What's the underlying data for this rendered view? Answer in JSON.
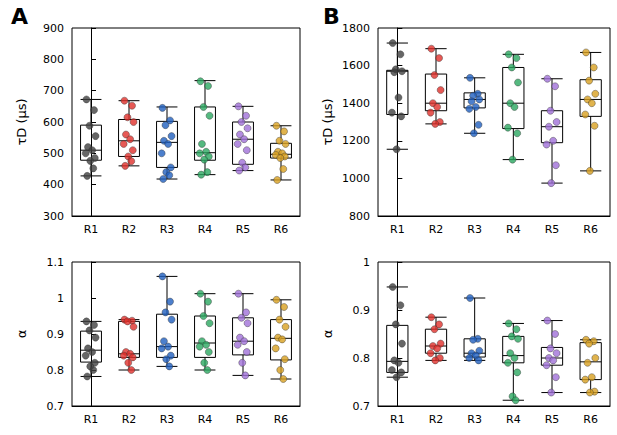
{
  "chart_data": [
    {
      "type": "boxplot",
      "title": "A",
      "ylabel": "τD (µs)",
      "categories": [
        "R1",
        "R2",
        "R3",
        "R4",
        "R5",
        "R6"
      ],
      "colors": [
        "#404040",
        "#e0302a",
        "#1f5fbf",
        "#2aa860",
        "#a070d8",
        "#d8a020"
      ],
      "ylim": [
        300,
        900
      ],
      "yticks": [
        300,
        400,
        500,
        600,
        700,
        800,
        900
      ],
      "boxes": [
        [
          428,
          478,
          510,
          590,
          672
        ],
        [
          460,
          490,
          540,
          608,
          668
        ],
        [
          418,
          455,
          535,
          602,
          648
        ],
        [
          432,
          478,
          502,
          648,
          732
        ],
        [
          445,
          465,
          545,
          600,
          650
        ],
        [
          415,
          485,
          497,
          532,
          588
        ]
      ],
      "points": [
        [
          672,
          638,
          588,
          555,
          520,
          510,
          500,
          485,
          476,
          452,
          428
        ],
        [
          668,
          652,
          615,
          600,
          560,
          545,
          530,
          510,
          490,
          475,
          460
        ],
        [
          645,
          605,
          590,
          555,
          540,
          530,
          500,
          455,
          440,
          430,
          418
        ],
        [
          730,
          715,
          648,
          620,
          530,
          505,
          500,
          490,
          480,
          440,
          432
        ],
        [
          650,
          620,
          600,
          580,
          560,
          545,
          530,
          510,
          470,
          455,
          445
        ],
        [
          588,
          570,
          540,
          530,
          505,
          500,
          495,
          490,
          485,
          450,
          415
        ]
      ]
    },
    {
      "type": "boxplot",
      "title": "B",
      "ylabel": "τD (µs)",
      "categories": [
        "R1",
        "R2",
        "R3",
        "R4",
        "R5",
        "R6"
      ],
      "colors": [
        "#404040",
        "#e0302a",
        "#1f5fbf",
        "#2aa860",
        "#a070d8",
        "#d8a020"
      ],
      "ylim": [
        800,
        1800
      ],
      "yticks": [
        800,
        1000,
        1200,
        1400,
        1600,
        1800
      ],
      "boxes": [
        [
          1155,
          1340,
          1570,
          1575,
          1720
        ],
        [
          1290,
          1360,
          1400,
          1555,
          1690
        ],
        [
          1240,
          1375,
          1420,
          1455,
          1535
        ],
        [
          1100,
          1265,
          1400,
          1590,
          1660
        ],
        [
          975,
          1190,
          1275,
          1360,
          1530
        ],
        [
          1040,
          1330,
          1420,
          1525,
          1670
        ]
      ],
      "points": [
        [
          1720,
          1660,
          1580,
          1570,
          1565,
          1430,
          1350,
          1330,
          1155
        ],
        [
          1690,
          1640,
          1550,
          1470,
          1400,
          1380,
          1350,
          1300,
          1290
        ],
        [
          1535,
          1450,
          1440,
          1420,
          1410,
          1380,
          1370,
          1285,
          1240
        ],
        [
          1660,
          1640,
          1590,
          1510,
          1400,
          1380,
          1270,
          1240,
          1100
        ],
        [
          1530,
          1490,
          1360,
          1300,
          1275,
          1200,
          1180,
          1070,
          975
        ],
        [
          1670,
          1590,
          1520,
          1450,
          1420,
          1400,
          1340,
          1280,
          1040
        ]
      ]
    },
    {
      "type": "boxplot",
      "ylabel": "α",
      "categories": [
        "R1",
        "R2",
        "R3",
        "R4",
        "R5",
        "R6"
      ],
      "colors": [
        "#404040",
        "#e0302a",
        "#1f5fbf",
        "#2aa860",
        "#a070d8",
        "#d8a020"
      ],
      "ylim": [
        0.7,
        1.1
      ],
      "yticks": [
        0.7,
        0.8,
        0.9,
        1,
        1.1
      ],
      "boxes": [
        [
          0.782,
          0.822,
          0.855,
          0.908,
          0.935
        ],
        [
          0.8,
          0.835,
          0.845,
          0.935,
          0.94
        ],
        [
          0.81,
          0.835,
          0.865,
          0.955,
          1.06
        ],
        [
          0.8,
          0.835,
          0.875,
          0.95,
          1.012
        ],
        [
          0.785,
          0.842,
          0.88,
          0.945,
          1.012
        ],
        [
          0.775,
          0.828,
          0.888,
          0.94,
          0.995
        ]
      ],
      "points": [
        [
          0.935,
          0.925,
          0.91,
          0.89,
          0.86,
          0.85,
          0.84,
          0.82,
          0.81,
          0.8,
          0.782
        ],
        [
          0.94,
          0.937,
          0.935,
          0.92,
          0.85,
          0.845,
          0.84,
          0.835,
          0.82,
          0.8
        ],
        [
          1.06,
          0.99,
          0.96,
          0.94,
          0.88,
          0.865,
          0.86,
          0.84,
          0.83,
          0.81
        ],
        [
          1.012,
          0.99,
          0.95,
          0.93,
          0.88,
          0.87,
          0.865,
          0.85,
          0.82,
          0.8
        ],
        [
          1.012,
          0.96,
          0.945,
          0.93,
          0.89,
          0.88,
          0.87,
          0.85,
          0.82,
          0.785
        ],
        [
          0.995,
          0.975,
          0.94,
          0.92,
          0.89,
          0.885,
          0.86,
          0.83,
          0.8,
          0.775
        ]
      ]
    },
    {
      "type": "boxplot",
      "ylabel": "α",
      "categories": [
        "R1",
        "R2",
        "R3",
        "R4",
        "R5",
        "R6"
      ],
      "colors": [
        "#404040",
        "#e0302a",
        "#1f5fbf",
        "#2aa860",
        "#a070d8",
        "#d8a020"
      ],
      "ylim": [
        0.7,
        1
      ],
      "yticks": [
        0.7,
        0.8,
        0.9,
        1
      ],
      "boxes": [
        [
          0.76,
          0.77,
          0.793,
          0.868,
          0.948
        ],
        [
          0.795,
          0.81,
          0.825,
          0.86,
          0.885
        ],
        [
          0.795,
          0.802,
          0.81,
          0.84,
          0.925
        ],
        [
          0.712,
          0.79,
          0.805,
          0.845,
          0.872
        ],
        [
          0.728,
          0.785,
          0.8,
          0.822,
          0.878
        ],
        [
          0.728,
          0.755,
          0.792,
          0.832,
          0.838
        ]
      ],
      "points": [
        [
          0.948,
          0.91,
          0.87,
          0.83,
          0.795,
          0.79,
          0.775,
          0.77,
          0.76
        ],
        [
          0.885,
          0.87,
          0.86,
          0.83,
          0.825,
          0.82,
          0.81,
          0.8,
          0.795
        ],
        [
          0.925,
          0.84,
          0.838,
          0.815,
          0.81,
          0.805,
          0.8,
          0.795
        ],
        [
          0.872,
          0.86,
          0.845,
          0.84,
          0.81,
          0.8,
          0.79,
          0.77,
          0.72,
          0.712
        ],
        [
          0.878,
          0.85,
          0.82,
          0.81,
          0.8,
          0.795,
          0.785,
          0.76,
          0.728
        ],
        [
          0.838,
          0.835,
          0.83,
          0.8,
          0.79,
          0.76,
          0.755,
          0.73,
          0.728
        ]
      ]
    }
  ]
}
